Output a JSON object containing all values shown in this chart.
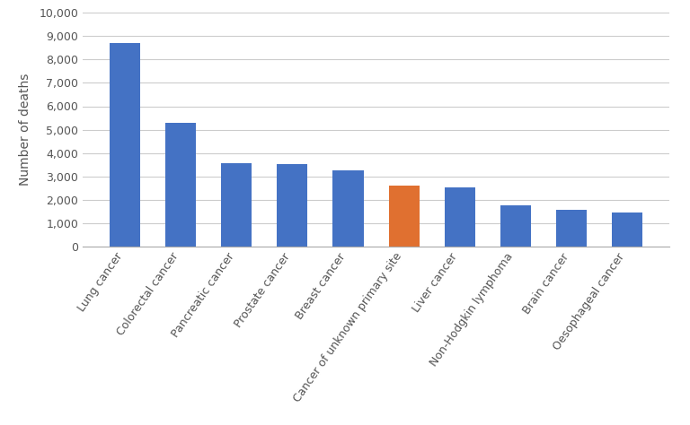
{
  "categories": [
    "Lung cancer",
    "Colorectal cancer",
    "Pancreatic cancer",
    "Prostate cancer",
    "Breast cancer",
    "Cancer of unknown primary site",
    "Liver cancer",
    "Non-Hodgkin lymphoma",
    "Brain cancer",
    "Oesophageal cancer"
  ],
  "values": [
    8700,
    5300,
    3570,
    3540,
    3270,
    2620,
    2530,
    1750,
    1580,
    1450
  ],
  "bar_colors": [
    "#4472C4",
    "#4472C4",
    "#4472C4",
    "#4472C4",
    "#4472C4",
    "#E07030",
    "#4472C4",
    "#4472C4",
    "#4472C4",
    "#4472C4"
  ],
  "ylabel": "Number of deaths",
  "ylim": [
    0,
    10000
  ],
  "yticks": [
    0,
    1000,
    2000,
    3000,
    4000,
    5000,
    6000,
    7000,
    8000,
    9000,
    10000
  ],
  "background_color": "#ffffff",
  "grid_color": "#cccccc",
  "bar_width": 0.55,
  "ylabel_fontsize": 10,
  "tick_fontsize": 9,
  "xlabel_rotation": 55
}
